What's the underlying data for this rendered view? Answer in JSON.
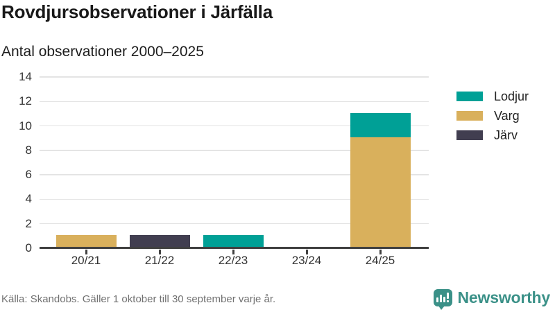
{
  "chart_data": {
    "type": "bar",
    "stacked": true,
    "title": "Rovdjursobservationer i Järfälla",
    "subtitle": "Antal observationer 2000–2025",
    "xlabel": "",
    "ylabel": "",
    "categories": [
      "20/21",
      "21/22",
      "22/23",
      "23/24",
      "24/25"
    ],
    "series": [
      {
        "name": "Lodjur",
        "color": "#00a096",
        "values": [
          0,
          0,
          1,
          0,
          2
        ]
      },
      {
        "name": "Varg",
        "color": "#d9b05c",
        "values": [
          1,
          0,
          0,
          0,
          9
        ]
      },
      {
        "name": "Järv",
        "color": "#413e50",
        "values": [
          0,
          1,
          0,
          0,
          0
        ]
      }
    ],
    "stack_note": "series stack bottom-to-top in reverse legend order (Varg below Lodjur in 24/25)",
    "ylim": [
      0,
      14
    ],
    "yticks": [
      0,
      2,
      4,
      6,
      8,
      10,
      12,
      14
    ],
    "grid": true,
    "legend_position": "right"
  },
  "footer": {
    "source": "Källa: Skandobs. Gäller 1 oktober till 30 september varje år.",
    "brand": {
      "name": "Newsworthy",
      "color": "#3b9188",
      "icon": "newsworthy-chart-bubble-icon"
    }
  },
  "style_colors": {
    "axis_line": "#404040",
    "gridline": "#e4e4e4",
    "axis_text": "#333333",
    "title_text": "#191919",
    "source_text": "#717171"
  }
}
